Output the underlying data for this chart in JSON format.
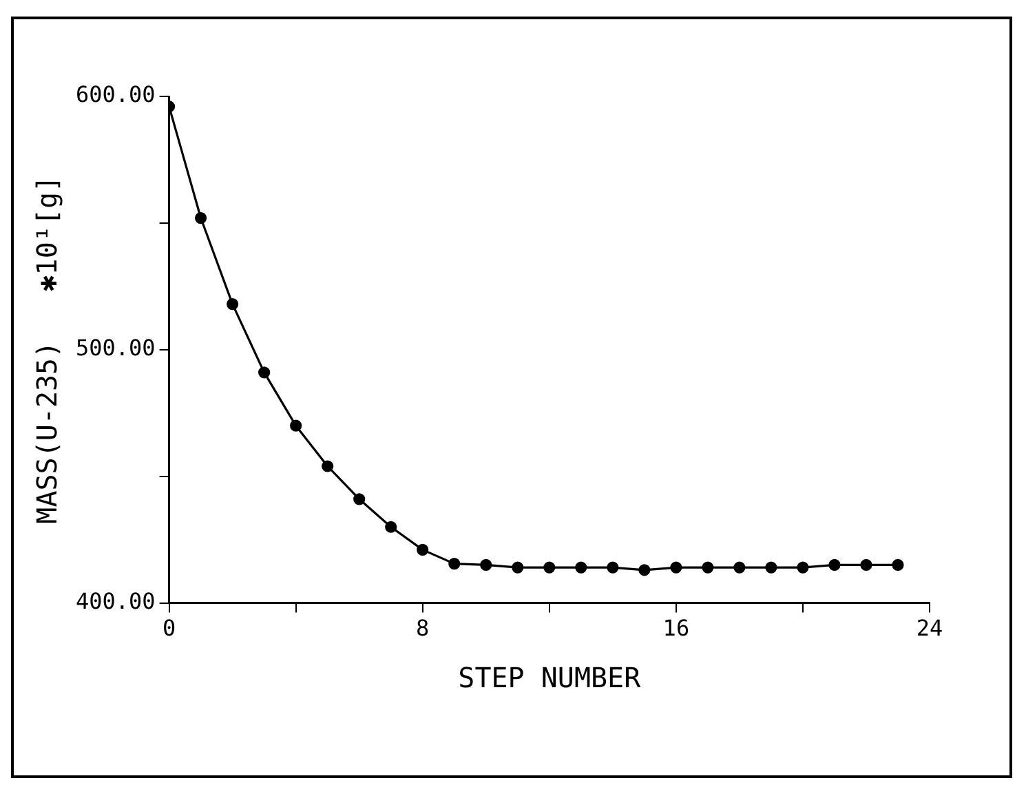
{
  "chart_data": {
    "type": "line",
    "xlabel": "STEP NUMBER",
    "ylabel": "MASS(U-235)   ✱10¹[g]",
    "x": [
      0,
      1,
      2,
      3,
      4,
      5,
      6,
      7,
      8,
      9,
      10,
      11,
      12,
      13,
      14,
      15,
      16,
      17,
      18,
      19,
      20,
      21,
      22,
      23
    ],
    "series": [
      {
        "color": "#000000",
        "values": [
          596,
          552,
          518,
          491,
          470,
          454,
          441,
          430,
          421,
          415.5,
          415,
          414,
          414,
          414,
          414,
          413,
          414,
          414,
          414,
          414,
          414,
          415,
          415,
          415
        ]
      }
    ],
    "xlim": [
      0,
      24
    ],
    "xticks": [
      0,
      {
        "value": 4,
        "label": null
      },
      8,
      {
        "value": 12,
        "label": null
      },
      16,
      {
        "value": 20,
        "label": null
      },
      24
    ],
    "ylim": [
      400,
      600
    ],
    "yticks": [
      {
        "value": 400,
        "label": "400.00"
      },
      {
        "value": 450,
        "label": null
      },
      {
        "value": 500,
        "label": "500.00"
      },
      {
        "value": 550,
        "label": null
      },
      {
        "value": 600,
        "label": "600.00"
      }
    ],
    "grid": false,
    "legend": false,
    "marker": "circle",
    "line_style": "solid"
  }
}
